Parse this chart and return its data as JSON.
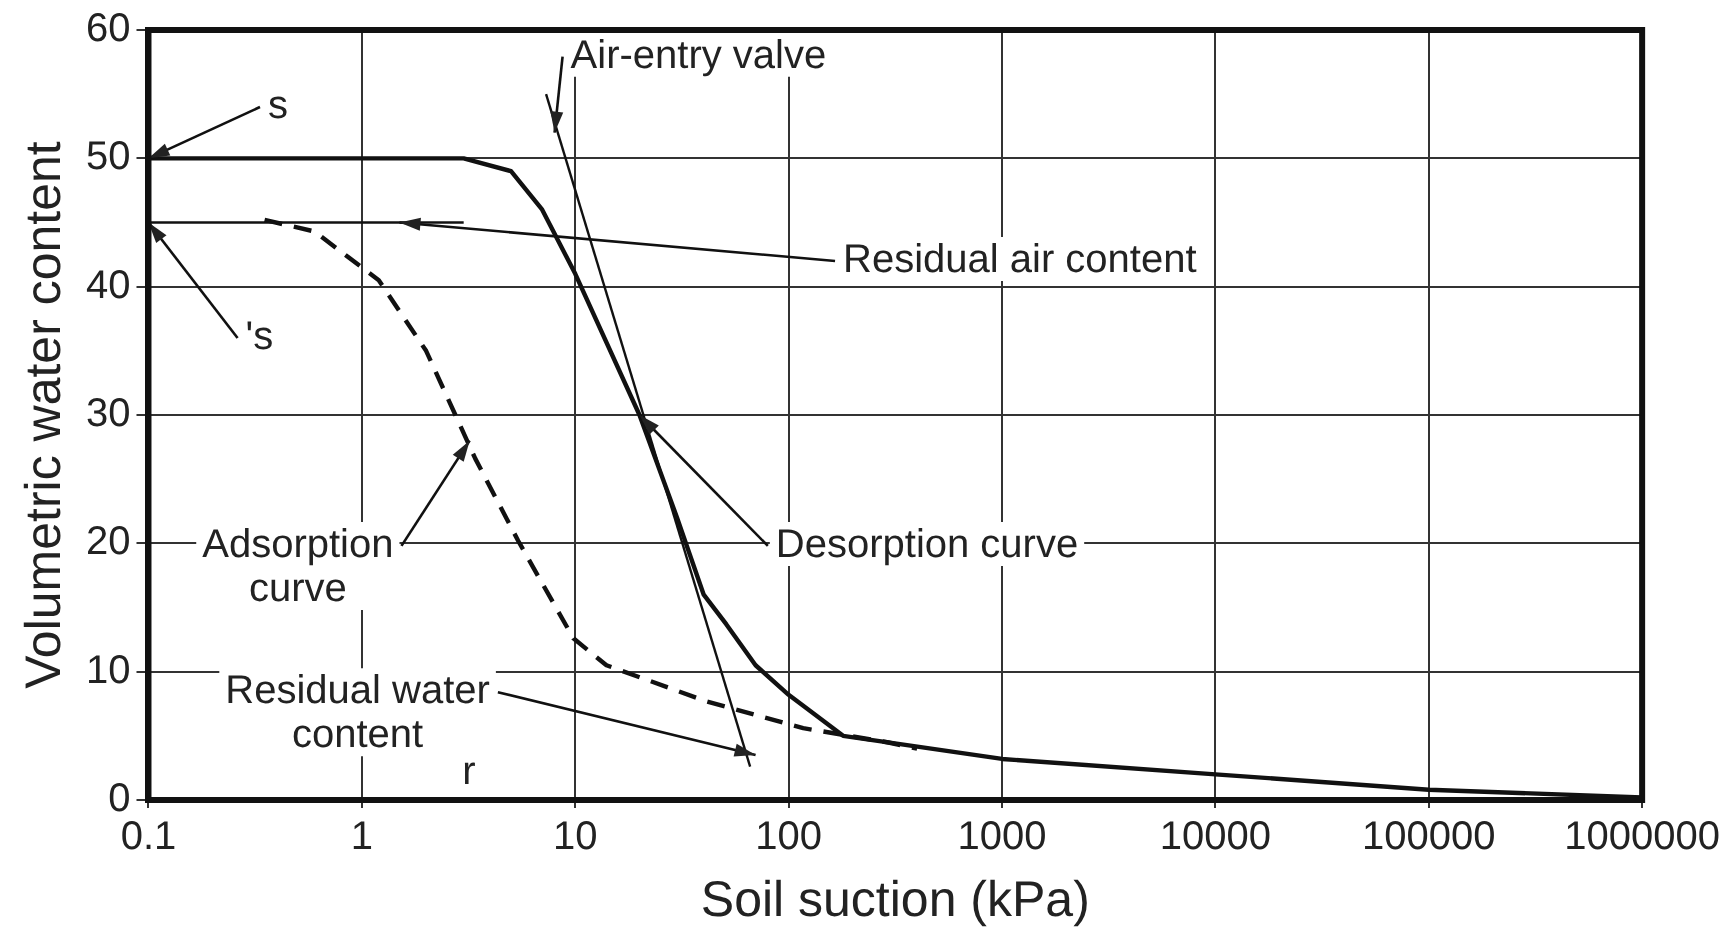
{
  "chart_data": {
    "type": "line",
    "xlabel": "Soil suction (kPa)",
    "ylabel": "Volumetric water content",
    "log": "x",
    "grid": true,
    "legend": false,
    "marker": "none",
    "xlim": [
      0.1,
      1000000
    ],
    "xticks": [
      0.1,
      1,
      10,
      100,
      1000,
      10000,
      100000,
      1000000
    ],
    "ylim": [
      0,
      60
    ],
    "yticks": [
      0,
      10,
      20,
      30,
      40,
      50,
      60
    ],
    "series": [
      {
        "color": "#111111",
        "line_style": "solid",
        "x": [
          0.1,
          1,
          3,
          5,
          7,
          10,
          20,
          30,
          40,
          51,
          70,
          100,
          180,
          1000,
          10000,
          100000,
          1000000
        ],
        "values": [
          50,
          50,
          50,
          49,
          46,
          41,
          30,
          22,
          16,
          13.7,
          10.5,
          8.2,
          5,
          3.2,
          2,
          0.8,
          0.2
        ]
      },
      {
        "color": "#111111",
        "line_style": "dashed",
        "x": [
          0.35,
          0.6,
          1.2,
          2,
          3.4,
          5.4,
          9.8,
          14,
          41,
          117,
          290,
          400
        ],
        "values": [
          45.2,
          44.3,
          40.5,
          35,
          26.6,
          20.2,
          12.6,
          10.5,
          7.7,
          5.6,
          4.5,
          4
        ]
      },
      {
        "color": "#111111",
        "line_style": "solid",
        "x": [
          0.1,
          3
        ],
        "values": [
          45,
          45
        ]
      },
      {
        "color": "#111111",
        "line_style": "solid",
        "x": [
          7.3,
          66
        ],
        "values": [
          55,
          2.6
        ]
      }
    ],
    "annotations": [
      {
        "text": "Air-entry valve",
        "x": 8,
        "y": 52
      },
      {
        "text": "Residual air content",
        "x": 1.5,
        "y": 45
      },
      {
        "text": "Desorption curve",
        "x": 20,
        "y": 30
      },
      {
        "text": "Adsorption curve",
        "x": 3.2,
        "y": 28
      },
      {
        "text": "Residual water content",
        "x": 70,
        "y": 3.5
      },
      {
        "text": "s",
        "x": 0.1,
        "y": 50
      },
      {
        "text": "'s",
        "x": 0.1,
        "y": 45
      },
      "r"
    ]
  }
}
